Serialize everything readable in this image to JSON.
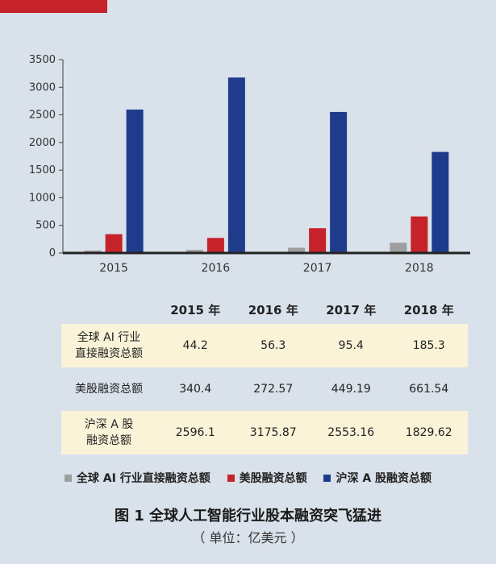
{
  "colors": {
    "background": "#d9e1ea",
    "tab_red": "#c6222a",
    "series_gray": "#9e9e9e",
    "series_red": "#c6222a",
    "series_blue": "#1f3c8c",
    "table_highlight": "#faf3d8"
  },
  "chart_data": {
    "type": "bar",
    "categories": [
      "2015",
      "2016",
      "2017",
      "2018"
    ],
    "series": [
      {
        "name": "全球 AI 行业直接融资总额",
        "color": "#9e9e9e",
        "values": [
          44.2,
          56.3,
          95.4,
          185.3
        ]
      },
      {
        "name": "美股融资总额",
        "color": "#c6222a",
        "values": [
          340.4,
          272.57,
          449.19,
          661.54
        ]
      },
      {
        "name": "沪深 A 股融资总额",
        "color": "#1f3c8c",
        "values": [
          2596.1,
          3175.87,
          2553.16,
          1829.62
        ]
      }
    ],
    "yticks": [
      "0",
      "500",
      "1000",
      "1500",
      "2000",
      "2500",
      "3000",
      "3500"
    ],
    "ylim": [
      0,
      3500
    ],
    "grid": false,
    "legend_position": "bottom"
  },
  "table": {
    "headers": [
      "2015 年",
      "2016 年",
      "2017 年",
      "2018 年"
    ],
    "rows": [
      {
        "label_lines": [
          "全球 AI 行业",
          "直接融资总额"
        ],
        "values": [
          "44.2",
          "56.3",
          "95.4",
          "185.3"
        ]
      },
      {
        "label_lines": [
          "美股融资总额"
        ],
        "values": [
          "340.4",
          "272.57",
          "449.19",
          "661.54"
        ]
      },
      {
        "label_lines": [
          "沪深 A 股",
          "融资总额"
        ],
        "values": [
          "2596.1",
          "3175.87",
          "2553.16",
          "1829.62"
        ]
      }
    ]
  },
  "legend": [
    {
      "label": "全球 AI 行业直接融资总额",
      "icon": "gray-square"
    },
    {
      "label": "美股融资总额",
      "icon": "red-square"
    },
    {
      "label": "沪深 A 股融资总额",
      "icon": "blue-square"
    }
  ],
  "caption": {
    "title": "图 1 全球人工智能行业股本融资突飞猛进",
    "unit": "（ 单位：亿美元 ）"
  }
}
